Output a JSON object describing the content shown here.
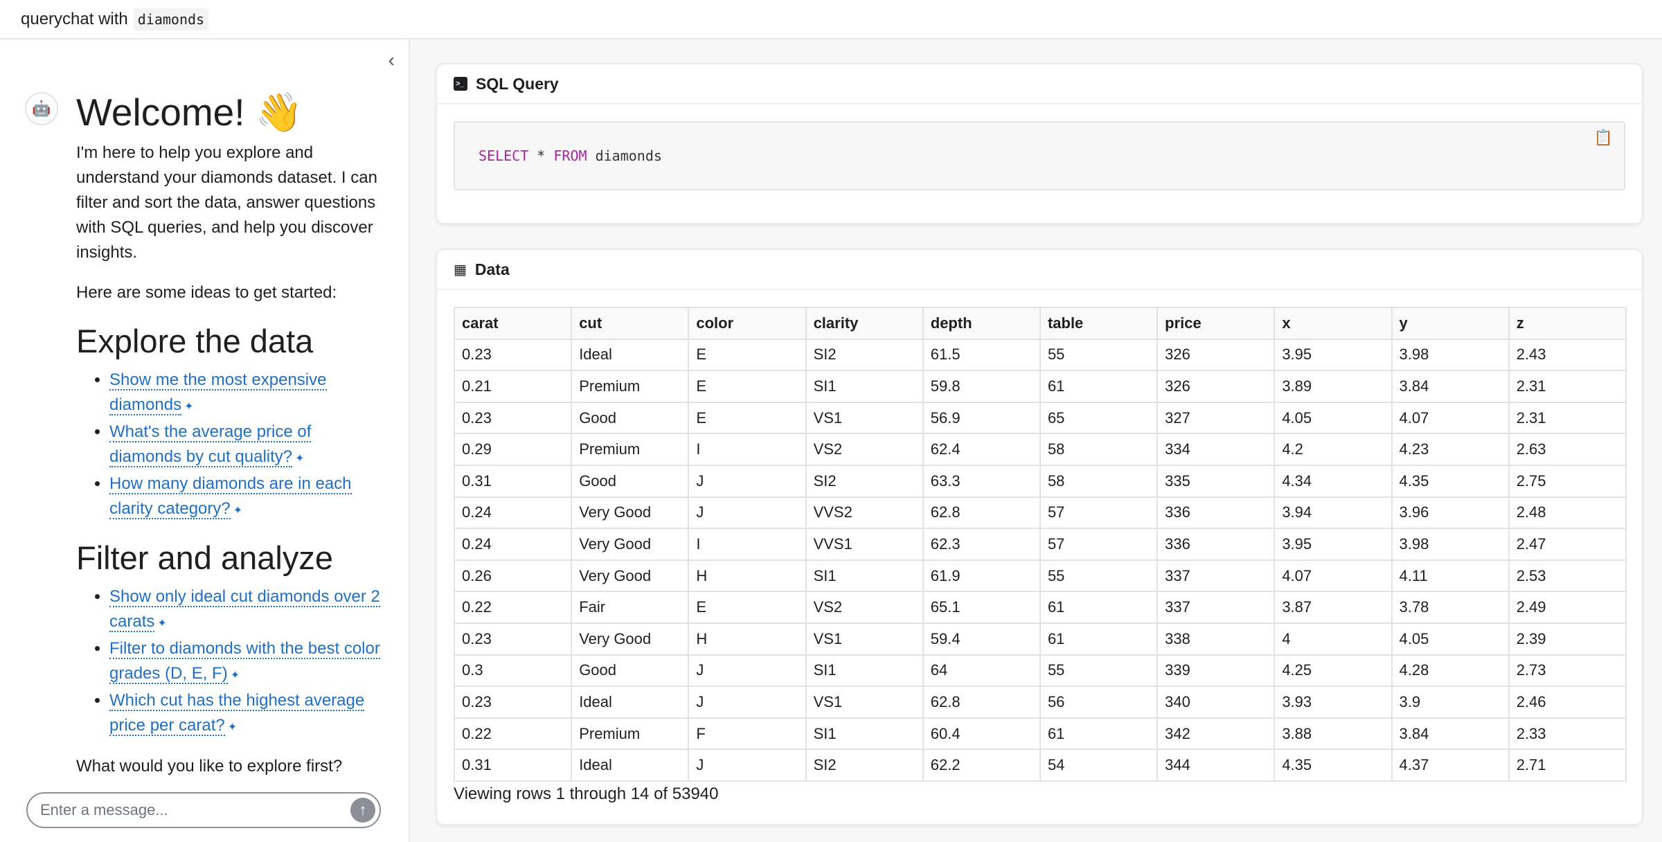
{
  "header": {
    "title": "querychat with",
    "dataset": "diamonds"
  },
  "sidebar": {
    "welcome": "Welcome! 👋",
    "intro": "I'm here to help you explore and understand your diamonds dataset. I can filter and sort the data, answer questions with SQL queries, and help you discover insights.",
    "ideas_intro": "Here are some ideas to get started:",
    "sections": [
      {
        "title": "Explore the data",
        "items": [
          "Show me the most expensive diamonds",
          "What's the average price of diamonds by cut quality?",
          "How many diamonds are in each clarity category?"
        ]
      },
      {
        "title": "Filter and analyze",
        "items": [
          "Show only ideal cut diamonds over 2 carats",
          "Filter to diamonds with the best color grades (D, E, F)",
          "Which cut has the highest average price per carat?"
        ]
      }
    ],
    "closing": "What would you like to explore first?",
    "input_placeholder": "Enter a message..."
  },
  "sql_card": {
    "title": "SQL Query",
    "kw1": "SELECT",
    "star": " * ",
    "kw2": "FROM",
    "table": " diamonds"
  },
  "data_card": {
    "title": "Data",
    "columns": [
      "carat",
      "cut",
      "color",
      "clarity",
      "depth",
      "table",
      "price",
      "x",
      "y",
      "z"
    ],
    "rows": [
      [
        "0.23",
        "Ideal",
        "E",
        "SI2",
        "61.5",
        "55",
        "326",
        "3.95",
        "3.98",
        "2.43"
      ],
      [
        "0.21",
        "Premium",
        "E",
        "SI1",
        "59.8",
        "61",
        "326",
        "3.89",
        "3.84",
        "2.31"
      ],
      [
        "0.23",
        "Good",
        "E",
        "VS1",
        "56.9",
        "65",
        "327",
        "4.05",
        "4.07",
        "2.31"
      ],
      [
        "0.29",
        "Premium",
        "I",
        "VS2",
        "62.4",
        "58",
        "334",
        "4.2",
        "4.23",
        "2.63"
      ],
      [
        "0.31",
        "Good",
        "J",
        "SI2",
        "63.3",
        "58",
        "335",
        "4.34",
        "4.35",
        "2.75"
      ],
      [
        "0.24",
        "Very Good",
        "J",
        "VVS2",
        "62.8",
        "57",
        "336",
        "3.94",
        "3.96",
        "2.48"
      ],
      [
        "0.24",
        "Very Good",
        "I",
        "VVS1",
        "62.3",
        "57",
        "336",
        "3.95",
        "3.98",
        "2.47"
      ],
      [
        "0.26",
        "Very Good",
        "H",
        "SI1",
        "61.9",
        "55",
        "337",
        "4.07",
        "4.11",
        "2.53"
      ],
      [
        "0.22",
        "Fair",
        "E",
        "VS2",
        "65.1",
        "61",
        "337",
        "3.87",
        "3.78",
        "2.49"
      ],
      [
        "0.23",
        "Very Good",
        "H",
        "VS1",
        "59.4",
        "61",
        "338",
        "4",
        "4.05",
        "2.39"
      ],
      [
        "0.3",
        "Good",
        "J",
        "SI1",
        "64",
        "55",
        "339",
        "4.25",
        "4.28",
        "2.73"
      ],
      [
        "0.23",
        "Ideal",
        "J",
        "VS1",
        "62.8",
        "56",
        "340",
        "3.93",
        "3.9",
        "2.46"
      ],
      [
        "0.22",
        "Premium",
        "F",
        "SI1",
        "60.4",
        "61",
        "342",
        "3.88",
        "3.84",
        "2.33"
      ],
      [
        "0.31",
        "Ideal",
        "J",
        "SI2",
        "62.2",
        "54",
        "344",
        "4.35",
        "4.37",
        "2.71"
      ]
    ],
    "footer": "Viewing rows 1 through 14 of 53940"
  },
  "colors": {
    "link": "#1f6fc5",
    "keyword": "#a626a4"
  }
}
